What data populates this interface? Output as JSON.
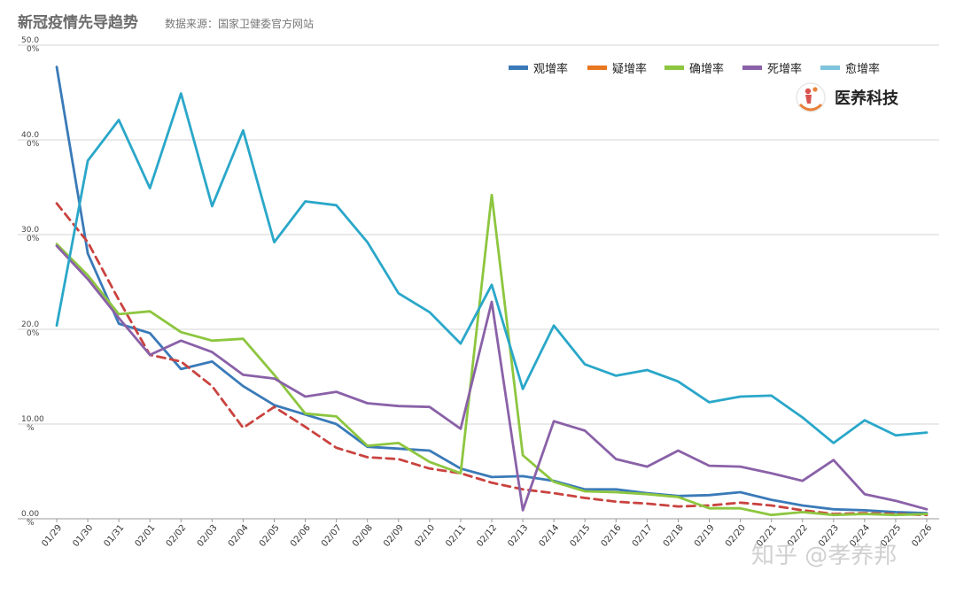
{
  "chart_data": {
    "type": "line",
    "title": "新冠疫情先导趋势",
    "subtitle": "数据来源：国家卫健委官方网站",
    "categories": [
      "01/29",
      "01/30",
      "01/31",
      "02/01",
      "02/02",
      "02/03",
      "02/04",
      "02/05",
      "02/06",
      "02/07",
      "02/08",
      "02/09",
      "02/10",
      "02/11",
      "02/12",
      "02/13",
      "02/14",
      "02/15",
      "02/16",
      "02/17",
      "02/18",
      "02/19",
      "02/20",
      "02/21",
      "02/22",
      "02/23",
      "02/24",
      "02/25",
      "02/26"
    ],
    "yticks": [
      {
        "value": 0,
        "line1": "0.00",
        "line2": "%"
      },
      {
        "value": 10,
        "line1": "10.00",
        "line2": "%"
      },
      {
        "value": 20,
        "line1": "20.0",
        "line2": "0%"
      },
      {
        "value": 30,
        "line1": "30.0",
        "line2": "0%"
      },
      {
        "value": 40,
        "line1": "40.0",
        "line2": "0%"
      },
      {
        "value": 50,
        "line1": "50.0",
        "line2": "0%"
      }
    ],
    "ylim": [
      0,
      50
    ],
    "grid": true,
    "legend_position": "top-right",
    "series": [
      {
        "name": "观增率",
        "color": "#3a7ab8",
        "dashed": false,
        "values": [
          47.7,
          28.0,
          20.6,
          19.6,
          15.8,
          16.6,
          14.0,
          12.0,
          11.0,
          10.0,
          7.6,
          7.4,
          7.2,
          5.3,
          4.4,
          4.5,
          4.0,
          3.1,
          3.1,
          2.7,
          2.4,
          2.5,
          2.8,
          2.0,
          1.4,
          1.0,
          0.9,
          0.7,
          0.6
        ]
      },
      {
        "name": "疑增率",
        "color": "#c9433f",
        "legend_color": "#e87722",
        "dashed": true,
        "values": [
          33.3,
          29.2,
          23.1,
          17.3,
          16.6,
          14.0,
          9.6,
          11.8,
          9.7,
          7.5,
          6.5,
          6.3,
          5.3,
          4.8,
          3.8,
          3.1,
          2.7,
          2.2,
          1.8,
          1.6,
          1.3,
          1.4,
          1.7,
          1.4,
          0.9,
          0.5,
          0.6,
          0.5,
          0.4
        ]
      },
      {
        "name": "确增率",
        "color": "#8dc63f",
        "dashed": false,
        "values": [
          29.0,
          25.7,
          21.6,
          21.9,
          19.7,
          18.8,
          19.0,
          15.2,
          11.1,
          10.8,
          7.7,
          8.0,
          6.0,
          4.8,
          34.2,
          6.7,
          3.9,
          2.9,
          2.8,
          2.6,
          2.3,
          1.1,
          1.1,
          0.4,
          0.7,
          0.4,
          0.5,
          0.4,
          0.5
        ]
      },
      {
        "name": "死增率",
        "color": "#8a61a8",
        "dashed": false,
        "values": [
          28.8,
          25.3,
          21.2,
          17.3,
          18.8,
          17.6,
          15.2,
          14.8,
          12.9,
          13.4,
          12.2,
          11.9,
          11.8,
          9.5,
          22.9,
          0.9,
          10.3,
          9.3,
          6.3,
          5.5,
          7.2,
          5.6,
          5.5,
          4.8,
          4.0,
          6.2,
          2.6,
          1.9,
          1.0
        ]
      },
      {
        "name": "愈增率",
        "color": "#2aa7c9",
        "legend_color": "#7fc4dd",
        "dashed": false,
        "values": [
          20.4,
          37.8,
          42.1,
          34.9,
          44.9,
          33.0,
          41.0,
          29.2,
          33.5,
          33.1,
          29.2,
          23.8,
          21.8,
          18.5,
          24.7,
          13.7,
          20.4,
          16.3,
          15.1,
          15.7,
          14.5,
          12.3,
          12.9,
          13.0,
          10.7,
          8.0,
          10.4,
          8.8,
          9.1
        ]
      }
    ]
  },
  "logo": {
    "label": "医养科技",
    "icon": "caregiver-logo-icon"
  },
  "watermark": {
    "text": "知乎 @孝养邦"
  }
}
